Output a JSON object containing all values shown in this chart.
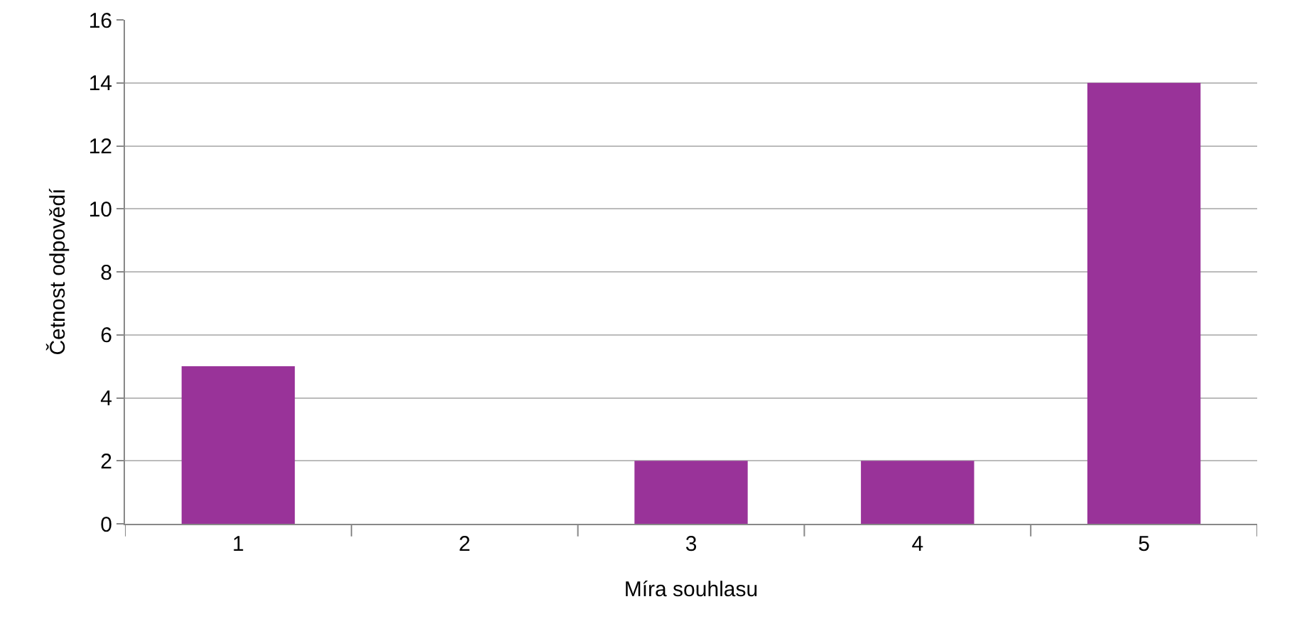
{
  "chart_data": {
    "type": "bar",
    "xlabel": "Míra souhlasu",
    "ylabel": "Četnost odpovědí",
    "categories": [
      "1",
      "2",
      "3",
      "4",
      "5"
    ],
    "values": [
      5,
      0,
      2,
      2,
      14
    ],
    "color": "#993399",
    "ylim": [
      0,
      16
    ],
    "yticks": [
      0,
      2,
      4,
      6,
      8,
      10,
      12,
      14,
      16
    ],
    "grid": "y",
    "legend": false
  }
}
